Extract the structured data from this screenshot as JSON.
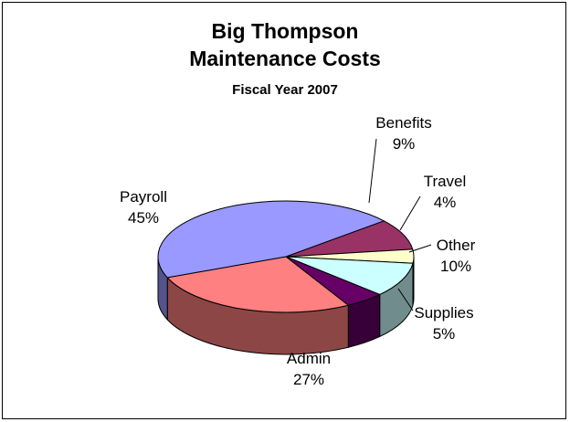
{
  "chart_data": {
    "type": "pie",
    "style": "3d",
    "title": "Big Thompson",
    "title_line2": "Maintenance Costs",
    "subtitle": "Fiscal Year 2007",
    "slices": [
      {
        "label": "Benefits",
        "value": 9,
        "pct": "9%",
        "color": "#993366"
      },
      {
        "label": "Travel",
        "value": 4,
        "pct": "4%",
        "color": "#ffffcc"
      },
      {
        "label": "Other",
        "value": 10,
        "pct": "10%",
        "color": "#ccffff"
      },
      {
        "label": "Supplies",
        "value": 5,
        "pct": "5%",
        "color": "#660066"
      },
      {
        "label": "Admin",
        "value": 27,
        "pct": "27%",
        "color": "#ff8080"
      },
      {
        "label": "Payroll",
        "value": 45,
        "pct": "45%",
        "color": "#9999ff"
      }
    ]
  }
}
